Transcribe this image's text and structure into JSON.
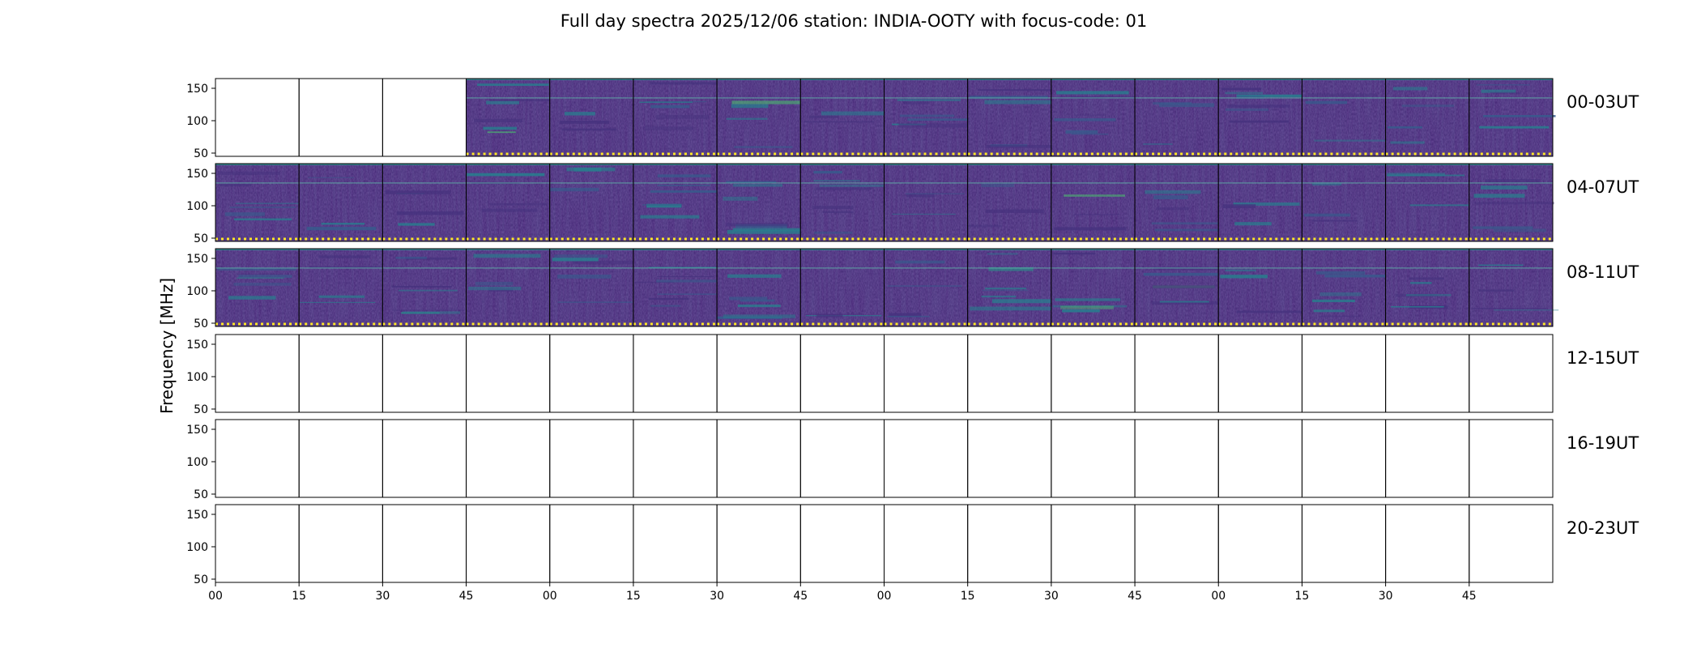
{
  "figure": {
    "title": "Full day spectra 2025/12/06 station: INDIA-OOTY with focus-code: 01"
  },
  "chart_data": {
    "type": "heatmap",
    "title": "Full day spectra 2025/12/06 station: INDIA-OOTY with focus-code: 01",
    "ylabel": "Frequency [MHz]",
    "xlabel": "",
    "ylim": [
      45,
      165
    ],
    "y_ticks": [
      "50",
      "100",
      "150"
    ],
    "y_tick_values": [
      50,
      100,
      150
    ],
    "x_tick_labels": [
      "00",
      "15",
      "30",
      "45",
      "00",
      "15",
      "30",
      "45",
      "00",
      "15",
      "30",
      "45",
      "00",
      "15",
      "30",
      "45"
    ],
    "colormap": "viridis",
    "grid": false,
    "rows": [
      {
        "label": "00-03UT",
        "panels_with_data": [
          false,
          false,
          false,
          true,
          true,
          true,
          true,
          true,
          true,
          true,
          true,
          true,
          true,
          true,
          true,
          true
        ]
      },
      {
        "label": "04-07UT",
        "panels_with_data": [
          true,
          true,
          true,
          true,
          true,
          true,
          true,
          true,
          true,
          true,
          true,
          true,
          true,
          true,
          true,
          true
        ]
      },
      {
        "label": "08-11UT",
        "panels_with_data": [
          true,
          true,
          true,
          true,
          true,
          true,
          true,
          true,
          true,
          true,
          true,
          true,
          true,
          true,
          true,
          true
        ]
      },
      {
        "label": "12-15UT",
        "panels_with_data": [
          false,
          false,
          false,
          false,
          false,
          false,
          false,
          false,
          false,
          false,
          false,
          false,
          false,
          false,
          false,
          false
        ]
      },
      {
        "label": "16-19UT",
        "panels_with_data": [
          false,
          false,
          false,
          false,
          false,
          false,
          false,
          false,
          false,
          false,
          false,
          false,
          false,
          false,
          false,
          false
        ]
      },
      {
        "label": "20-23UT",
        "panels_with_data": [
          false,
          false,
          false,
          false,
          false,
          false,
          false,
          false,
          false,
          false,
          false,
          false,
          false,
          false,
          false,
          false
        ]
      }
    ]
  }
}
